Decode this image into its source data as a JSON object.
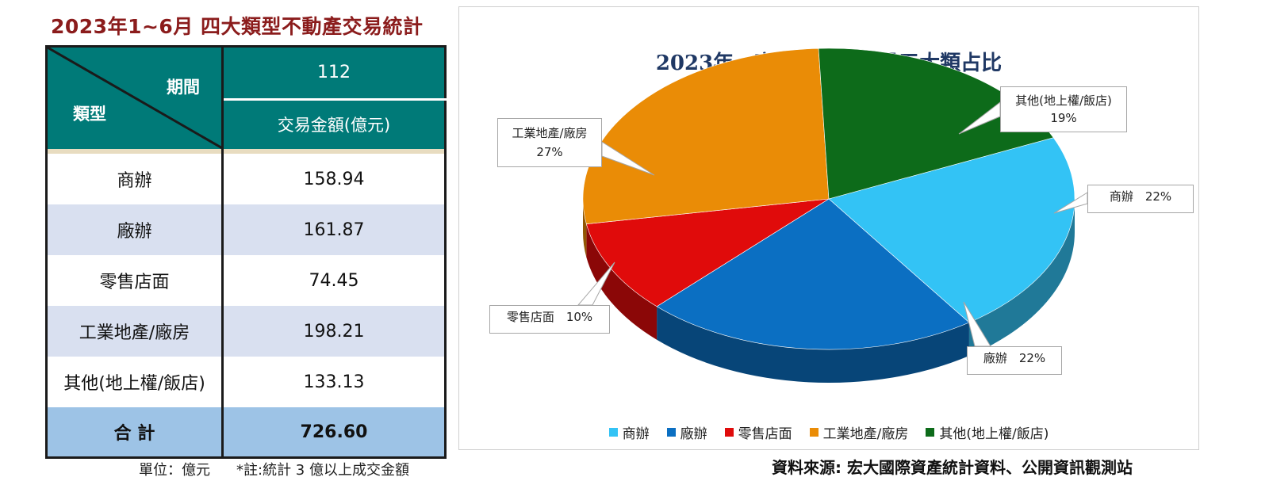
{
  "left_title": "2023年1~6月  四大類型不動產交易統計",
  "table": {
    "header_period": "期間",
    "header_type": "類型",
    "year": "112",
    "amount_header": "交易金額(億元)",
    "rows": [
      {
        "type": "商辦",
        "amount": "158.94"
      },
      {
        "type": "廠辦",
        "amount": "161.87"
      },
      {
        "type": "零售店面",
        "amount": "74.45"
      },
      {
        "type": "工業地產/廠房",
        "amount": "198.21"
      },
      {
        "type": "其他(地上權/飯店)",
        "amount": "133.13"
      }
    ],
    "total_label": "合 計",
    "total_amount": "726.60"
  },
  "unit_note": "單位：億元",
  "footnote": "*註:統計 3 億以上成交金額",
  "source": "資料來源: 宏大國際資產統計資料、公開資訊觀測站",
  "chart_data": {
    "type": "pie",
    "title": "2023年　商用不動產交易五大類占比",
    "slices": [
      {
        "label": "商辦",
        "value": 22,
        "display": "商辦　22%",
        "color": "#33c3f5"
      },
      {
        "label": "廠辦",
        "value": 22,
        "display": "廠辦　22%",
        "color": "#0b6fc2"
      },
      {
        "label": "零售店面",
        "value": 10,
        "display": "零售店面　10%",
        "color": "#e00b0b"
      },
      {
        "label": "工業地產/廠房",
        "value": 27,
        "display": "27%",
        "color": "#ea8c06"
      },
      {
        "label": "其他(地上權/飯店)",
        "value": 19,
        "display": "19%",
        "color": "#0d6b1a"
      }
    ],
    "legend_position": "bottom"
  }
}
